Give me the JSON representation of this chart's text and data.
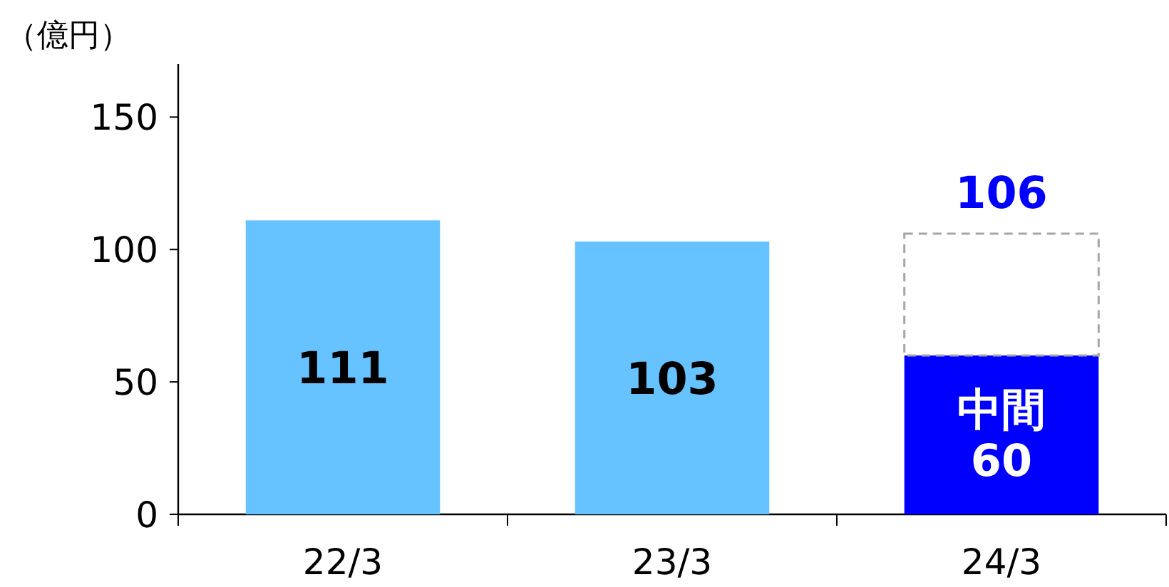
{
  "chart_data": {
    "type": "bar",
    "ylabel": "（億円）",
    "categories": [
      "22/3",
      "23/3",
      "24/3"
    ],
    "stacked": true,
    "ylim": [
      0,
      170
    ],
    "yticks": [
      0,
      50,
      100,
      150
    ],
    "series": [
      {
        "colors": [
          "#66c3ff",
          "#66c3ff",
          "#0000ff"
        ],
        "values": [
          111,
          103,
          60
        ],
        "value_labels": [
          "111",
          "103",
          "中間\n60"
        ]
      },
      {
        "color": "#a6a6a6",
        "line_style": "dashed",
        "values": [
          null,
          null,
          46
        ]
      }
    ],
    "totals": [
      null,
      null,
      "106"
    ]
  }
}
